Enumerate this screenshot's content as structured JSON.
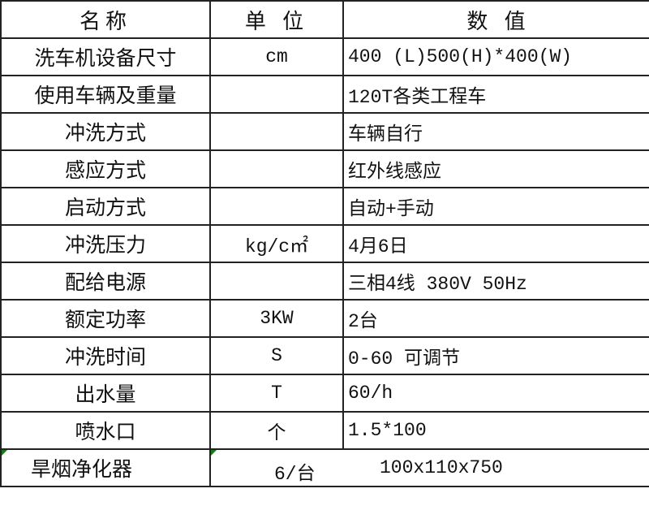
{
  "headers": [
    "名称",
    "单 位",
    "数 值"
  ],
  "rows": [
    {
      "name": "洗车机设备尺寸",
      "unit": "cm",
      "value": "400 (L)500(H)*400(W)"
    },
    {
      "name": "使用车辆及重量",
      "unit": "",
      "value": "120T各类工程车"
    },
    {
      "name": "冲洗方式",
      "unit": "",
      "value": "车辆自行"
    },
    {
      "name": "感应方式",
      "unit": "",
      "value": "红外线感应"
    },
    {
      "name": "启动方式",
      "unit": "",
      "value": "自动+手动"
    },
    {
      "name": "冲洗压力",
      "unit": "kg/c㎡",
      "value": "4月6日"
    },
    {
      "name": "配给电源",
      "unit": "",
      "value": "三相4线  380V 50Hz"
    },
    {
      "name": "额定功率",
      "unit": "3KW",
      "value": "2台"
    },
    {
      "name": "冲洗时间",
      "unit": "S",
      "value": "0-60  可调节"
    },
    {
      "name": "出水量",
      "unit": "T",
      "value": "60/h"
    },
    {
      "name": "喷水口",
      "unit": "个",
      "value": "1.5*100"
    }
  ],
  "last_row": {
    "name": "旱烟净化器",
    "quantity": "6/台",
    "dimensions": "100x110x750"
  },
  "colors": {
    "border": "#222222",
    "marker": "#1a7a1a"
  }
}
